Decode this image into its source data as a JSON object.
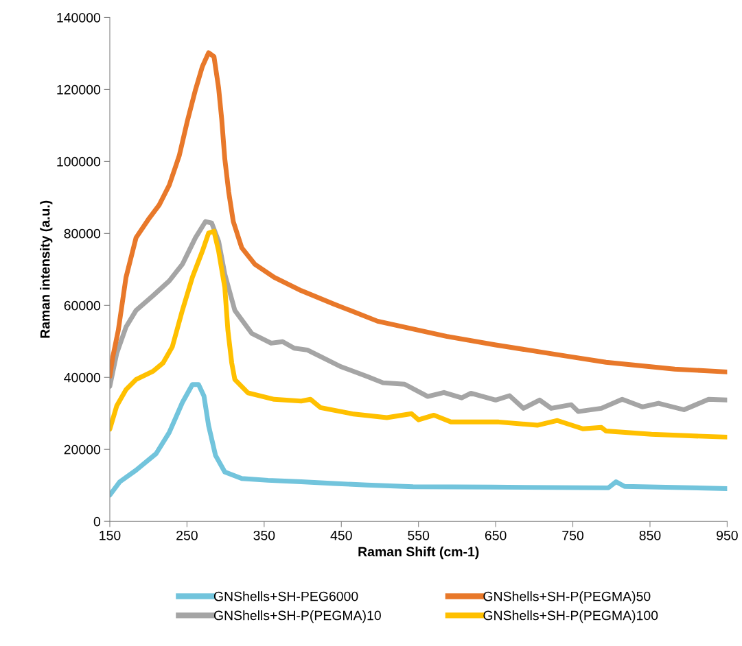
{
  "chart_data": {
    "type": "line",
    "xlabel": "Raman Shift (cm-1)",
    "ylabel": "Raman intensity (a.u.)",
    "xlim": [
      150,
      950
    ],
    "xticks": [
      150,
      250,
      350,
      450,
      550,
      650,
      750,
      850,
      950
    ],
    "ylim": [
      0,
      140000
    ],
    "yticks": [
      0,
      20000,
      40000,
      60000,
      80000,
      100000,
      120000,
      140000
    ],
    "grid": false,
    "legend": "bottom",
    "marker": "none",
    "line_style": "solid",
    "series": [
      {
        "name": "GNShells+SH-PEG6000",
        "color": "#72c4dc",
        "x": [
          150,
          163,
          184,
          210,
          227,
          244,
          257,
          265,
          272,
          278,
          287,
          299,
          321,
          355,
          398,
          440,
          483,
          543,
          645,
          796,
          806,
          817,
          950
        ],
        "values": [
          7300,
          11000,
          14200,
          18800,
          24700,
          33000,
          38000,
          38000,
          34800,
          26600,
          18300,
          13700,
          11900,
          11400,
          11000,
          10500,
          10100,
          9600,
          9500,
          9300,
          11000,
          9700,
          9100
        ]
      },
      {
        "name": "GNShells+SH-P(PEGMA)10",
        "color": "#a5a5a5",
        "x": [
          150,
          159,
          171,
          184,
          206,
          227,
          244,
          261,
          274,
          282,
          291,
          299,
          312,
          334,
          359,
          374,
          389,
          406,
          423,
          449,
          483,
          504,
          532,
          562,
          583,
          606,
          618,
          650,
          668,
          686,
          707,
          722,
          748,
          757,
          787,
          814,
          840,
          861,
          894,
          926,
          950
        ],
        "values": [
          37500,
          46700,
          54000,
          58600,
          62700,
          66800,
          71400,
          78800,
          83300,
          82900,
          77800,
          68700,
          58600,
          52200,
          49500,
          49900,
          48100,
          47600,
          45800,
          43000,
          40300,
          38500,
          38100,
          34700,
          35800,
          34300,
          35600,
          33700,
          34900,
          31400,
          33700,
          31400,
          32400,
          30500,
          31400,
          33900,
          31800,
          32800,
          31000,
          33900,
          33700
        ]
      },
      {
        "name": "GNShells+SH-P(PEGMA)50",
        "color": "#e8782a",
        "x": [
          150,
          154,
          161,
          171,
          184,
          201,
          214,
          227,
          240,
          250,
          261,
          270,
          278,
          285,
          291,
          295,
          299,
          304,
          310,
          321,
          338,
          363,
          398,
          440,
          497,
          586,
          650,
          748,
          793,
          882,
          950
        ],
        "values": [
          40300,
          45800,
          53100,
          67800,
          78800,
          84200,
          87900,
          93400,
          101600,
          110800,
          119900,
          126400,
          130200,
          129100,
          120400,
          111700,
          100700,
          91600,
          83300,
          76000,
          71400,
          67800,
          64100,
          60400,
          55600,
          51400,
          49000,
          45700,
          44200,
          42300,
          41500
        ]
      },
      {
        "name": "GNShells+SH-P(PEGMA)100",
        "color": "#ffc000",
        "x": [
          150,
          159,
          171,
          184,
          206,
          219,
          231,
          244,
          257,
          270,
          278,
          285,
          291,
          299,
          303,
          308,
          312,
          329,
          363,
          398,
          410,
          423,
          466,
          509,
          541,
          550,
          570,
          592,
          654,
          704,
          730,
          763,
          787,
          793,
          852,
          897,
          950
        ],
        "values": [
          25600,
          32100,
          36600,
          39400,
          41700,
          44000,
          48500,
          58600,
          67800,
          75100,
          80100,
          80600,
          75100,
          65000,
          53100,
          44000,
          39400,
          35700,
          33900,
          33400,
          33900,
          31600,
          29800,
          28800,
          29900,
          28200,
          29500,
          27600,
          27600,
          26700,
          28000,
          25700,
          26100,
          25100,
          24200,
          23800,
          23400
        ]
      }
    ]
  }
}
